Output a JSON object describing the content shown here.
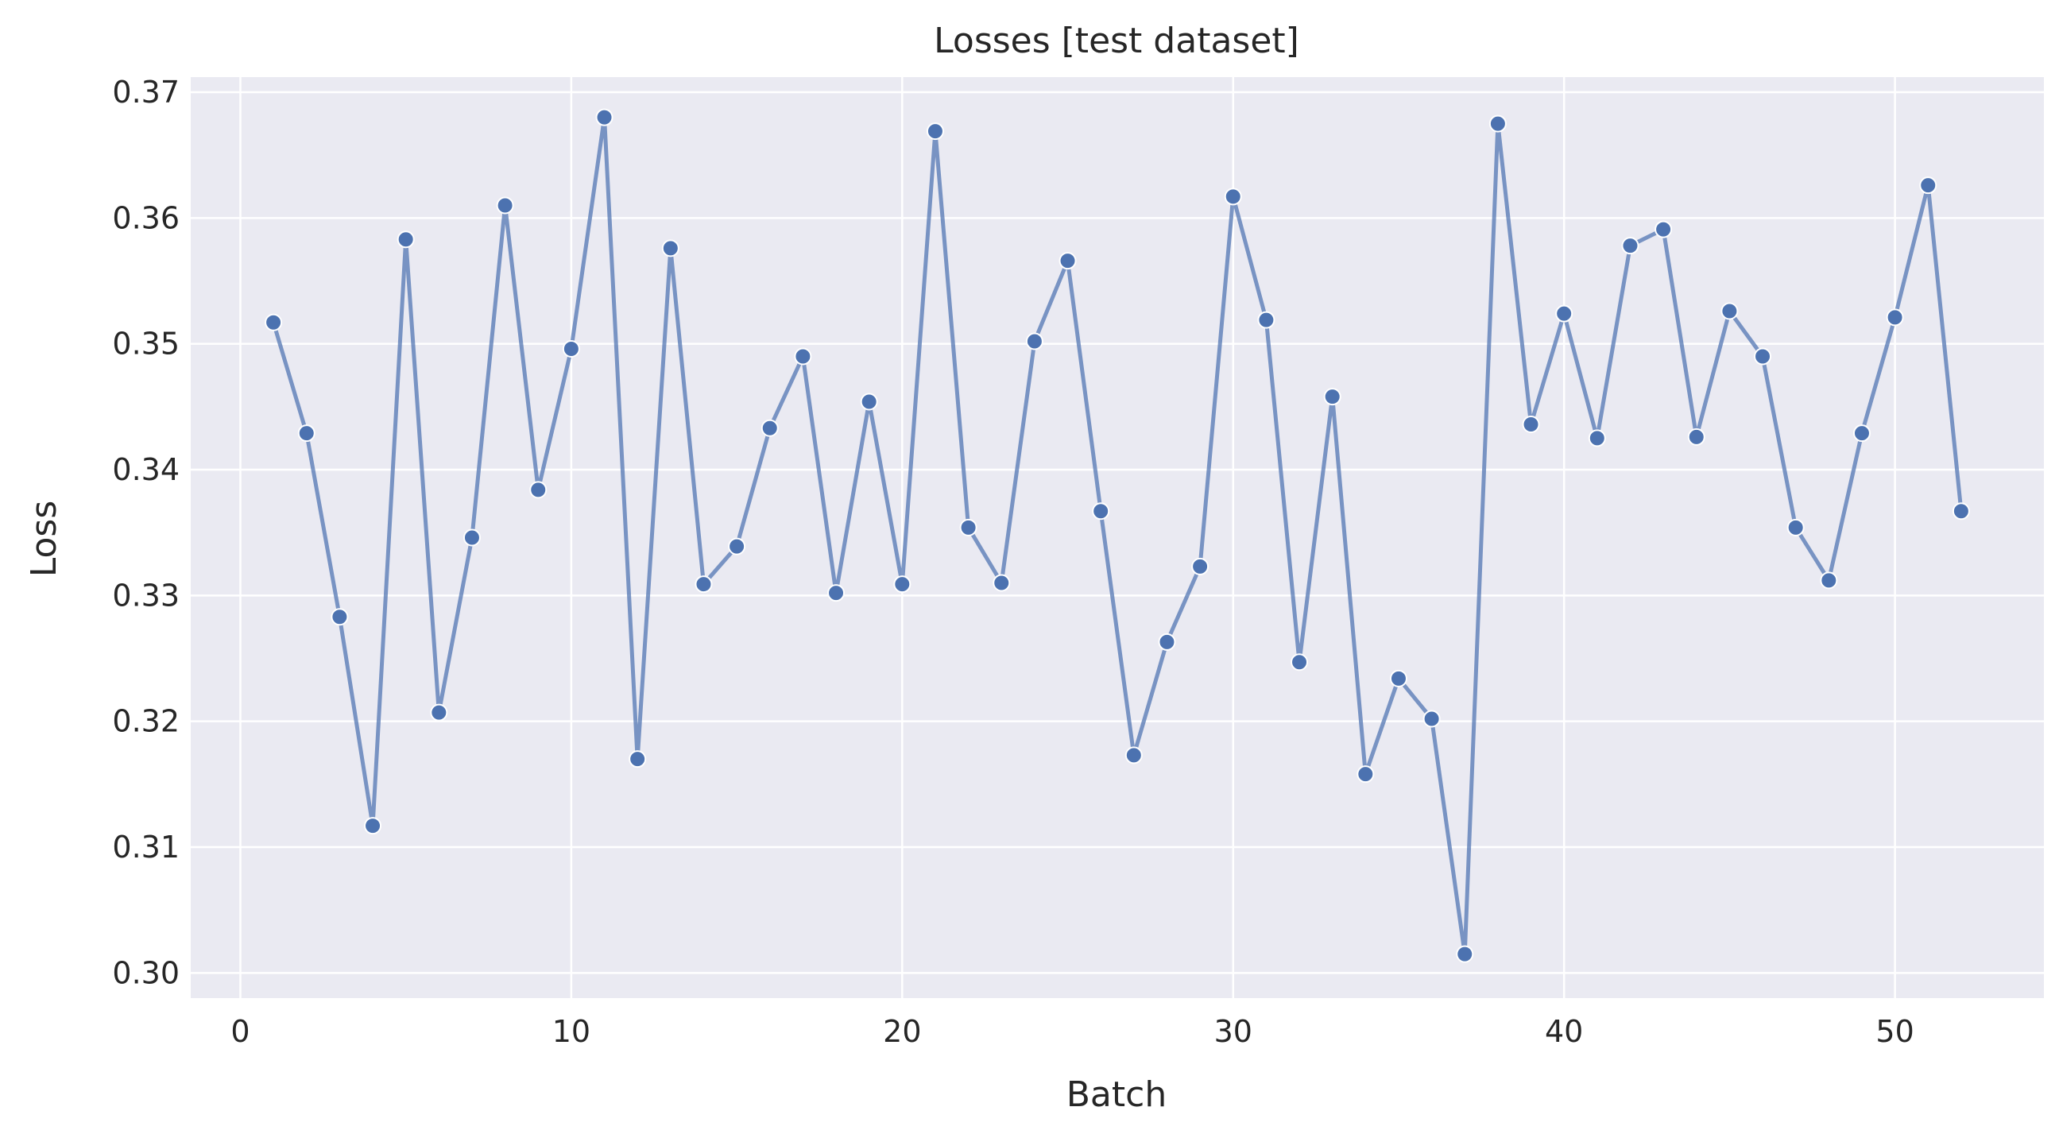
{
  "chart_data": {
    "type": "line",
    "title": "Losses [test dataset]",
    "xlabel": "Batch",
    "ylabel": "Loss",
    "xlim": [
      -1.5,
      54.5
    ],
    "ylim": [
      0.298,
      0.3712
    ],
    "xticks": [
      0,
      10,
      20,
      30,
      40,
      50
    ],
    "yticks": [
      0.3,
      0.31,
      0.32,
      0.33,
      0.34,
      0.35,
      0.36,
      0.37
    ],
    "grid": true,
    "colors": {
      "background": "#eaeaf2",
      "line": "#4c72b0",
      "marker": "#4c72b0",
      "marker_edge": "#ffffff",
      "grid": "#ffffff"
    },
    "x": [
      1,
      2,
      3,
      4,
      5,
      6,
      7,
      8,
      9,
      10,
      11,
      12,
      13,
      14,
      15,
      16,
      17,
      18,
      19,
      20,
      21,
      22,
      23,
      24,
      25,
      26,
      27,
      28,
      29,
      30,
      31,
      32,
      33,
      34,
      35,
      36,
      37,
      38,
      39,
      40,
      41,
      42,
      43,
      44,
      45,
      46,
      47,
      48,
      49,
      50,
      51,
      52
    ],
    "series": [
      {
        "values": [
          0.3517,
          0.3429,
          0.3283,
          0.3117,
          0.3583,
          0.3207,
          0.3346,
          0.361,
          0.3384,
          0.3496,
          0.368,
          0.317,
          0.3576,
          0.3309,
          0.3339,
          0.3433,
          0.349,
          0.3302,
          0.3454,
          0.3309,
          0.3669,
          0.3354,
          0.331,
          0.3502,
          0.3566,
          0.3367,
          0.3173,
          0.3263,
          0.3323,
          0.3617,
          0.3519,
          0.3247,
          0.3458,
          0.3158,
          0.3234,
          0.3202,
          0.3015,
          0.3675,
          0.3436,
          0.3524,
          0.3425,
          0.3578,
          0.3591,
          0.3426,
          0.3526,
          0.349,
          0.3354,
          0.3312,
          0.3429,
          0.3521,
          0.3626,
          0.3367
        ]
      }
    ]
  }
}
